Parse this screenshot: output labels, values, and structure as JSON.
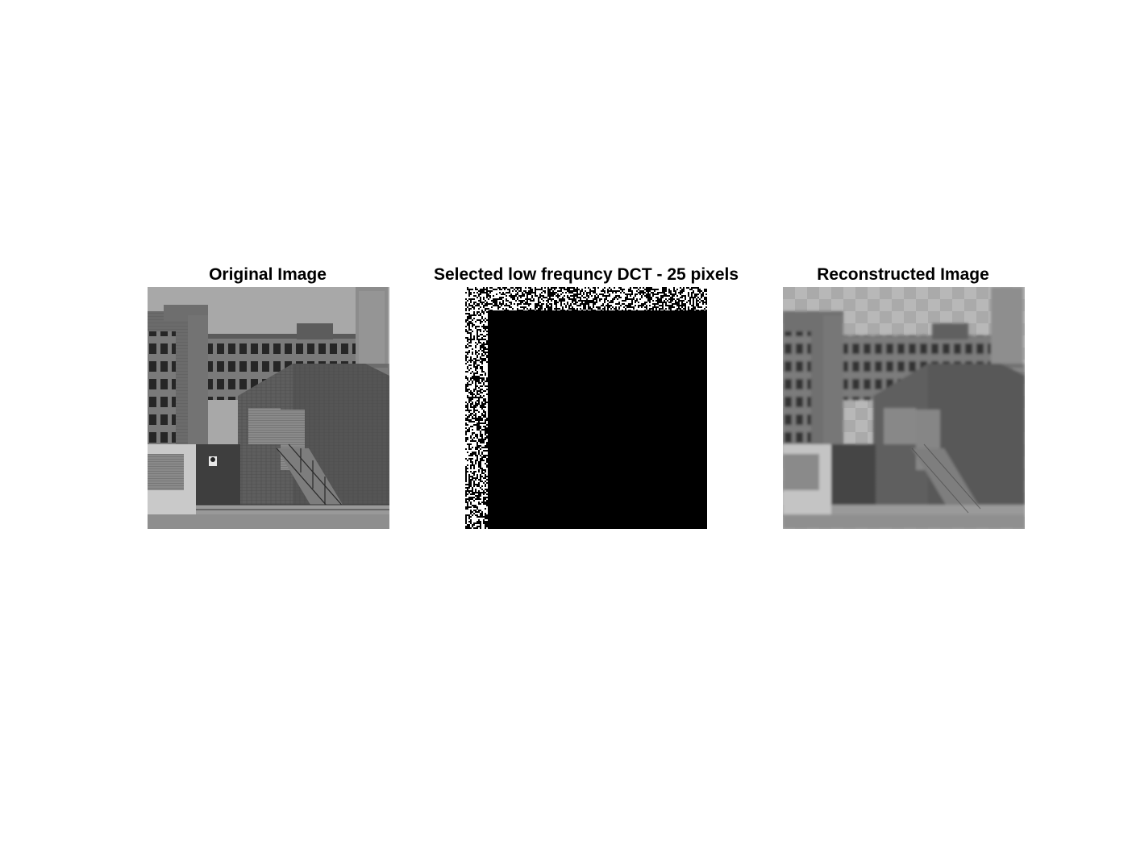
{
  "figure": {
    "background": "#ffffff",
    "panels": [
      {
        "title": "Original Image",
        "kind": "original"
      },
      {
        "title": "Selected low frequncy DCT - 25 pixels",
        "kind": "dct-mask"
      },
      {
        "title": "Reconstructed Image",
        "kind": "reconstructed"
      }
    ]
  }
}
